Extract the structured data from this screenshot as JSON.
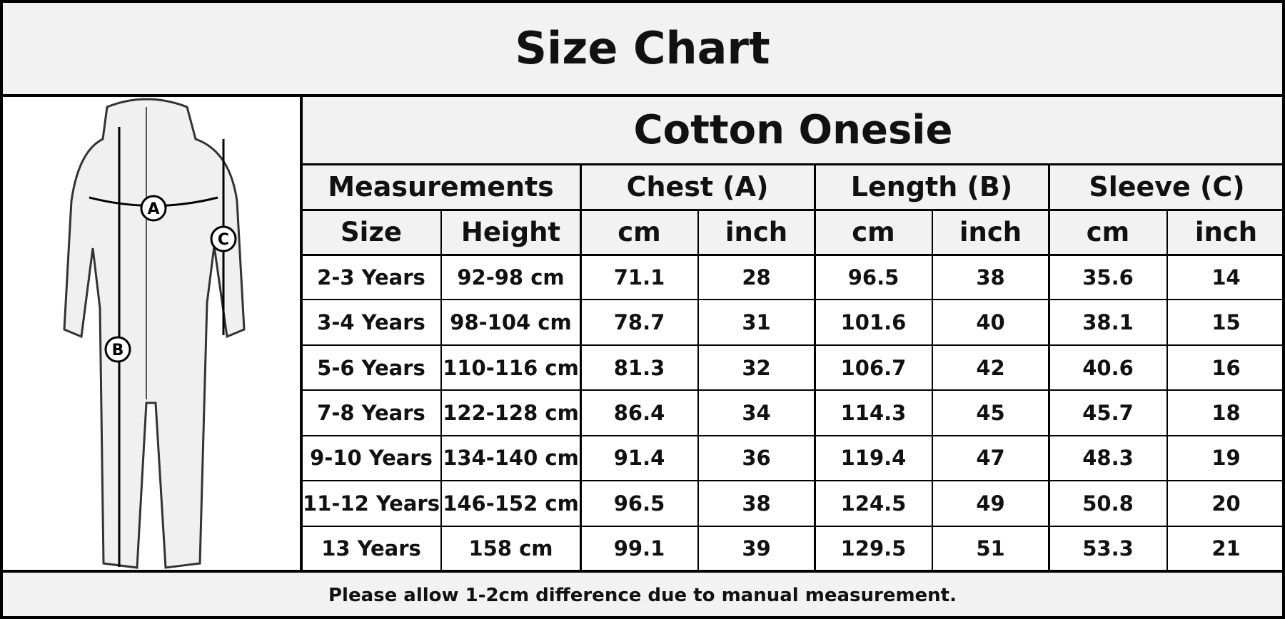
{
  "title": "Size Chart",
  "product": "Cotton Onesie",
  "group_headers": [
    "Measurements",
    "Chest (A)",
    "Length (B)",
    "Sleeve (C)"
  ],
  "sub_headers": [
    "Size",
    "Height",
    "cm",
    "inch",
    "cm",
    "inch",
    "cm",
    "inch"
  ],
  "rows": [
    [
      "2-3 Years",
      "92-98 cm",
      71.1,
      28,
      96.5,
      38,
      35.6,
      14
    ],
    [
      "3-4 Years",
      "98-104 cm",
      78.7,
      31,
      101.6,
      40,
      38.1,
      15
    ],
    [
      "5-6 Years",
      "110-116 cm",
      81.3,
      32,
      106.7,
      42,
      40.6,
      16
    ],
    [
      "7-8 Years",
      "122-128 cm",
      86.4,
      34,
      114.3,
      45,
      45.7,
      18
    ],
    [
      "9-10 Years",
      "134-140 cm",
      91.4,
      36,
      119.4,
      47,
      48.3,
      19
    ],
    [
      "11-12 Years",
      "146-152 cm",
      96.5,
      38,
      124.5,
      49,
      50.8,
      20
    ],
    [
      "13 Years",
      "158 cm",
      99.1,
      39,
      129.5,
      51,
      53.3,
      21
    ]
  ],
  "note": "Please allow 1-2cm difference due to manual measurement.",
  "figure_labels": [
    "A",
    "B",
    "C"
  ]
}
